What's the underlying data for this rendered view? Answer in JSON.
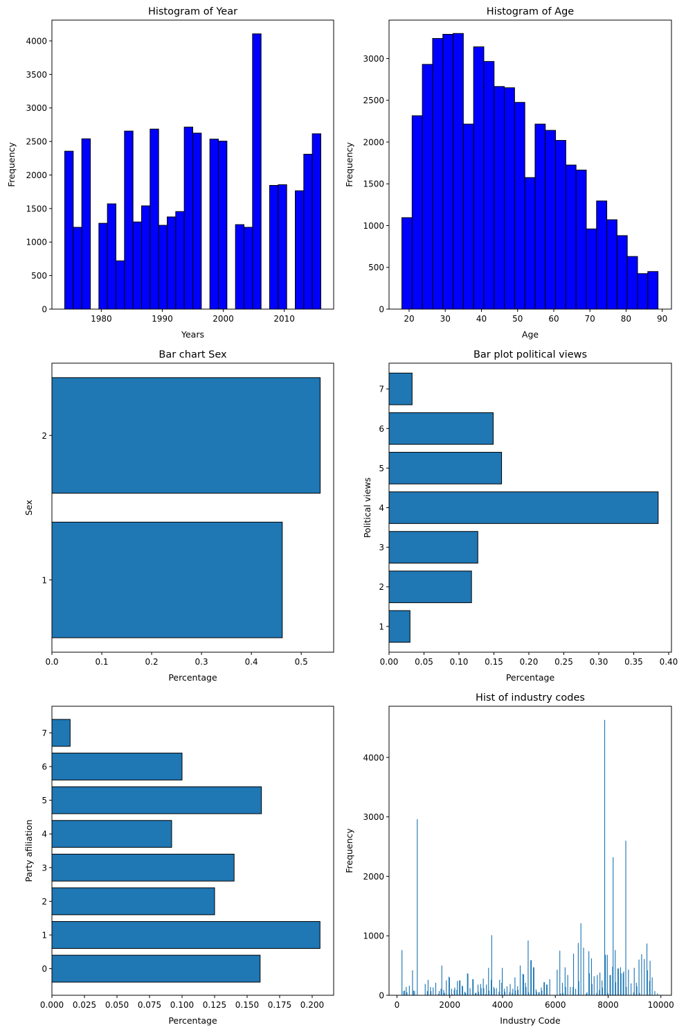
{
  "colors": {
    "hist_fill": "#0000ff",
    "bar_fill": "#1f77b4",
    "edge": "#000000"
  },
  "chart_data": [
    {
      "id": "year",
      "type": "bar",
      "subtype": "histogram",
      "title": "Histogram of Year",
      "xlabel": "Years",
      "ylabel": "Frequency",
      "xlim": [
        1971.9,
        2018.1
      ],
      "ylim": [
        0,
        4310
      ],
      "xticks": [
        1980,
        1990,
        2000,
        2010
      ],
      "yticks": [
        0,
        500,
        1000,
        1500,
        2000,
        2500,
        3000,
        3500,
        4000
      ],
      "bin_start": 1974,
      "bin_width": 1.4,
      "values": [
        2355,
        1220,
        2540,
        0,
        1280,
        1570,
        720,
        2655,
        1300,
        1540,
        2685,
        1250,
        1375,
        1455,
        2715,
        2625,
        0,
        2535,
        2505,
        0,
        1260,
        1220,
        4105,
        0,
        1845,
        1855,
        0,
        1765,
        2310,
        2615
      ],
      "grid": false
    },
    {
      "id": "age",
      "type": "bar",
      "subtype": "histogram",
      "title": "Histogram of Age",
      "xlabel": "Age",
      "ylabel": "Frequency",
      "xlim": [
        14.45,
        92.55
      ],
      "ylim": [
        0,
        3460
      ],
      "xticks": [
        20,
        30,
        40,
        50,
        60,
        70,
        80,
        90
      ],
      "yticks": [
        0,
        500,
        1000,
        1500,
        2000,
        2500,
        3000
      ],
      "bin_start": 18,
      "bin_width": 2.8333,
      "values": [
        1095,
        2315,
        2930,
        3240,
        3290,
        3300,
        2215,
        3140,
        2965,
        2665,
        2650,
        2475,
        1575,
        2215,
        2140,
        2020,
        1725,
        1665,
        960,
        1295,
        1070,
        880,
        630,
        425,
        450
      ],
      "grid": false
    },
    {
      "id": "sex",
      "type": "bar",
      "orientation": "horizontal",
      "title": "Bar chart Sex",
      "xlabel": "Percentage",
      "ylabel": "Sex",
      "categories": [
        "1",
        "2"
      ],
      "values": [
        0.462,
        0.538
      ],
      "xlim": [
        0,
        0.565
      ],
      "ylim": [
        0.5,
        2.5
      ],
      "xticks": [
        0.0,
        0.1,
        0.2,
        0.3,
        0.4,
        0.5
      ],
      "xtick_labels": [
        "0.0",
        "0.1",
        "0.2",
        "0.3",
        "0.4",
        "0.5"
      ],
      "grid": false
    },
    {
      "id": "polviews",
      "type": "bar",
      "orientation": "horizontal",
      "title": "Bar plot political views",
      "xlabel": "Percentage",
      "ylabel": "Political views",
      "categories": [
        "1",
        "2",
        "3",
        "4",
        "5",
        "6",
        "7"
      ],
      "values": [
        0.03,
        0.118,
        0.127,
        0.385,
        0.161,
        0.149,
        0.033
      ],
      "xlim": [
        0,
        0.404
      ],
      "ylim": [
        0.35,
        7.65
      ],
      "xticks": [
        0.0,
        0.05,
        0.1,
        0.15,
        0.2,
        0.25,
        0.3,
        0.35,
        0.4
      ],
      "xtick_labels": [
        "0.00",
        "0.05",
        "0.10",
        "0.15",
        "0.20",
        "0.25",
        "0.30",
        "0.35",
        "0.40"
      ],
      "grid": false
    },
    {
      "id": "partyid",
      "type": "bar",
      "orientation": "horizontal",
      "title": "",
      "xlabel": "Percentage",
      "ylabel": "Party afiliation",
      "categories": [
        "0",
        "1",
        "2",
        "3",
        "4",
        "5",
        "6",
        "7"
      ],
      "values": [
        0.16,
        0.206,
        0.125,
        0.14,
        0.092,
        0.161,
        0.1,
        0.014
      ],
      "xlim": [
        0,
        0.2165
      ],
      "ylim": [
        -0.79,
        7.79
      ],
      "xticks": [
        0.0,
        0.025,
        0.05,
        0.075,
        0.1,
        0.125,
        0.15,
        0.175,
        0.2
      ],
      "xtick_labels": [
        "0.000",
        "0.025",
        "0.050",
        "0.075",
        "0.100",
        "0.125",
        "0.150",
        "0.175",
        "0.200"
      ],
      "grid": false
    },
    {
      "id": "industry",
      "type": "bar",
      "subtype": "histogram",
      "title": "Hist of industry codes",
      "xlabel": "Industry Code",
      "ylabel": "Frequency",
      "xlim": [
        -300,
        10400
      ],
      "ylim": [
        0,
        4860
      ],
      "xticks": [
        0,
        2000,
        4000,
        6000,
        8000,
        10000
      ],
      "yticks": [
        0,
        1000,
        2000,
        3000,
        4000
      ],
      "bin_width": 30,
      "points": [
        [
          190,
          760
        ],
        [
          250,
          70
        ],
        [
          290,
          80
        ],
        [
          350,
          140
        ],
        [
          380,
          50
        ],
        [
          470,
          160
        ],
        [
          590,
          420
        ],
        [
          630,
          80
        ],
        [
          670,
          70
        ],
        [
          770,
          2960
        ],
        [
          1070,
          190
        ],
        [
          1150,
          70
        ],
        [
          1180,
          260
        ],
        [
          1270,
          140
        ],
        [
          1290,
          70
        ],
        [
          1370,
          130
        ],
        [
          1470,
          210
        ],
        [
          1570,
          20
        ],
        [
          1600,
          70
        ],
        [
          1670,
          110
        ],
        [
          1700,
          500
        ],
        [
          1770,
          90
        ],
        [
          1800,
          40
        ],
        [
          1870,
          250
        ],
        [
          1970,
          310
        ],
        [
          1990,
          300
        ],
        [
          2070,
          110
        ],
        [
          2090,
          20
        ],
        [
          2170,
          90
        ],
        [
          2190,
          130
        ],
        [
          2270,
          90
        ],
        [
          2290,
          240
        ],
        [
          2370,
          250
        ],
        [
          2390,
          250
        ],
        [
          2470,
          160
        ],
        [
          2490,
          150
        ],
        [
          2570,
          60
        ],
        [
          2600,
          40
        ],
        [
          2670,
          370
        ],
        [
          2690,
          360
        ],
        [
          2770,
          120
        ],
        [
          2870,
          270
        ],
        [
          2890,
          270
        ],
        [
          2970,
          40
        ],
        [
          3000,
          40
        ],
        [
          3070,
          180
        ],
        [
          3090,
          60
        ],
        [
          3170,
          190
        ],
        [
          3190,
          120
        ],
        [
          3270,
          280
        ],
        [
          3290,
          120
        ],
        [
          3370,
          20
        ],
        [
          3390,
          180
        ],
        [
          3470,
          460
        ],
        [
          3490,
          80
        ],
        [
          3570,
          260
        ],
        [
          3590,
          1010
        ],
        [
          3670,
          140
        ],
        [
          3690,
          110
        ],
        [
          3770,
          120
        ],
        [
          3870,
          60
        ],
        [
          3890,
          260
        ],
        [
          3970,
          210
        ],
        [
          3990,
          460
        ],
        [
          4070,
          110
        ],
        [
          4090,
          60
        ],
        [
          4170,
          150
        ],
        [
          4270,
          50
        ],
        [
          4290,
          190
        ],
        [
          4370,
          40
        ],
        [
          4390,
          110
        ],
        [
          4470,
          300
        ],
        [
          4490,
          80
        ],
        [
          4570,
          150
        ],
        [
          4590,
          90
        ],
        [
          4670,
          500
        ],
        [
          4770,
          360
        ],
        [
          4800,
          350
        ],
        [
          4870,
          210
        ],
        [
          4890,
          140
        ],
        [
          4970,
          920
        ],
        [
          4990,
          50
        ],
        [
          5070,
          590
        ],
        [
          5090,
          590
        ],
        [
          5170,
          470
        ],
        [
          5190,
          470
        ],
        [
          5270,
          100
        ],
        [
          5290,
          60
        ],
        [
          5370,
          50
        ],
        [
          5390,
          50
        ],
        [
          5470,
          130
        ],
        [
          5490,
          80
        ],
        [
          5570,
          220
        ],
        [
          5590,
          220
        ],
        [
          5670,
          180
        ],
        [
          5690,
          180
        ],
        [
          5790,
          270
        ],
        [
          6070,
          430
        ],
        [
          6170,
          750
        ],
        [
          6200,
          30
        ],
        [
          6270,
          210
        ],
        [
          6290,
          40
        ],
        [
          6370,
          470
        ],
        [
          6390,
          140
        ],
        [
          6470,
          340
        ],
        [
          6570,
          140
        ],
        [
          6670,
          140
        ],
        [
          6690,
          700
        ],
        [
          6770,
          110
        ],
        [
          6870,
          880
        ],
        [
          6890,
          240
        ],
        [
          6970,
          1210
        ],
        [
          7070,
          800
        ],
        [
          7170,
          30
        ],
        [
          7200,
          50
        ],
        [
          7270,
          740
        ],
        [
          7290,
          370
        ],
        [
          7370,
          620
        ],
        [
          7390,
          190
        ],
        [
          7470,
          320
        ],
        [
          7570,
          40
        ],
        [
          7590,
          340
        ],
        [
          7670,
          90
        ],
        [
          7690,
          380
        ],
        [
          7770,
          250
        ],
        [
          7790,
          130
        ],
        [
          7870,
          4630
        ],
        [
          7900,
          680
        ],
        [
          7970,
          680
        ],
        [
          7990,
          40
        ],
        [
          8070,
          340
        ],
        [
          8090,
          340
        ],
        [
          8170,
          480
        ],
        [
          8190,
          2320
        ],
        [
          8270,
          760
        ],
        [
          8290,
          220
        ],
        [
          8370,
          450
        ],
        [
          8390,
          450
        ],
        [
          8470,
          470
        ],
        [
          8490,
          370
        ],
        [
          8570,
          370
        ],
        [
          8590,
          400
        ],
        [
          8670,
          2600
        ],
        [
          8690,
          140
        ],
        [
          8770,
          430
        ],
        [
          8870,
          200
        ],
        [
          8970,
          50
        ],
        [
          8990,
          460
        ],
        [
          9070,
          210
        ],
        [
          9090,
          150
        ],
        [
          9170,
          600
        ],
        [
          9190,
          40
        ],
        [
          9270,
          690
        ],
        [
          9370,
          610
        ],
        [
          9470,
          870
        ],
        [
          9490,
          420
        ],
        [
          9570,
          240
        ],
        [
          9590,
          580
        ],
        [
          9670,
          300
        ],
        [
          9770,
          70
        ],
        [
          9870,
          30
        ]
      ],
      "grid": false
    }
  ]
}
